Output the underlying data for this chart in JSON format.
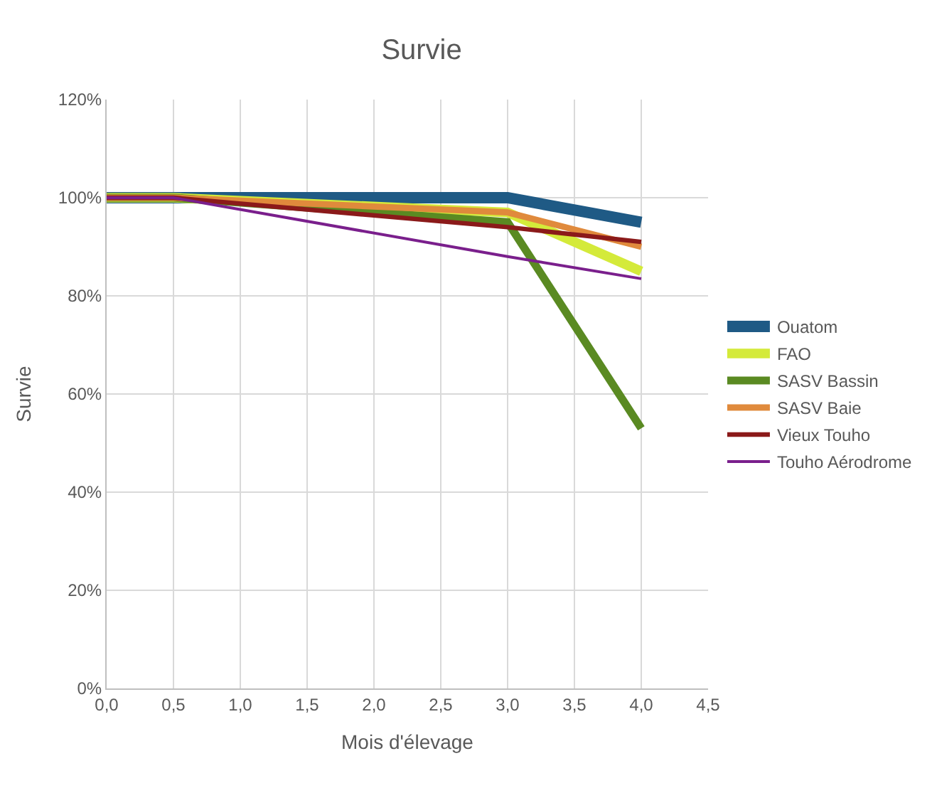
{
  "chart_data": {
    "type": "line",
    "title": "Survie",
    "xlabel": "Mois d'élevage",
    "ylabel": "Survie",
    "x": [
      0,
      0.5,
      3,
      4
    ],
    "series": [
      {
        "name": "Ouatom",
        "color": "#1f5a85",
        "values": [
          100,
          100,
          100,
          95
        ]
      },
      {
        "name": "FAO",
        "color": "#d4ea3a",
        "values": [
          100,
          100,
          97,
          85
        ]
      },
      {
        "name": "SASV Bassin",
        "color": "#5a8a22",
        "values": [
          100,
          100,
          95,
          53
        ]
      },
      {
        "name": "SASV Baie",
        "color": "#e08a3c",
        "values": [
          100,
          100,
          97,
          90
        ]
      },
      {
        "name": "Vieux Touho",
        "color": "#8b1a1a",
        "values": [
          100,
          100,
          94,
          91
        ]
      },
      {
        "name": "Touho Aérodrome",
        "color": "#7a1f8c",
        "values": [
          100,
          100,
          88,
          83.5
        ]
      }
    ],
    "xlim": [
      0,
      4.5
    ],
    "xticks": [
      {
        "value": 0,
        "label": "0,0"
      },
      {
        "value": 0.5,
        "label": "0,5"
      },
      {
        "value": 1,
        "label": "1,0"
      },
      {
        "value": 1.5,
        "label": "1,5"
      },
      {
        "value": 2,
        "label": "2,0"
      },
      {
        "value": 2.5,
        "label": "2,5"
      },
      {
        "value": 3,
        "label": "3,0"
      },
      {
        "value": 3.5,
        "label": "3,5"
      },
      {
        "value": 4,
        "label": "4,0"
      },
      {
        "value": 4.5,
        "label": "4,5"
      }
    ],
    "ylim": [
      0,
      120
    ],
    "yticks": [
      {
        "value": 0,
        "label": "0%"
      },
      {
        "value": 20,
        "label": "20%"
      },
      {
        "value": 40,
        "label": "40%"
      },
      {
        "value": 60,
        "label": "60%"
      },
      {
        "value": 80,
        "label": "80%"
      },
      {
        "value": 100,
        "label": "100%"
      },
      {
        "value": 120,
        "label": "120%"
      }
    ],
    "grid": true,
    "legend": "right",
    "marker": "none",
    "line_style": "solid"
  }
}
